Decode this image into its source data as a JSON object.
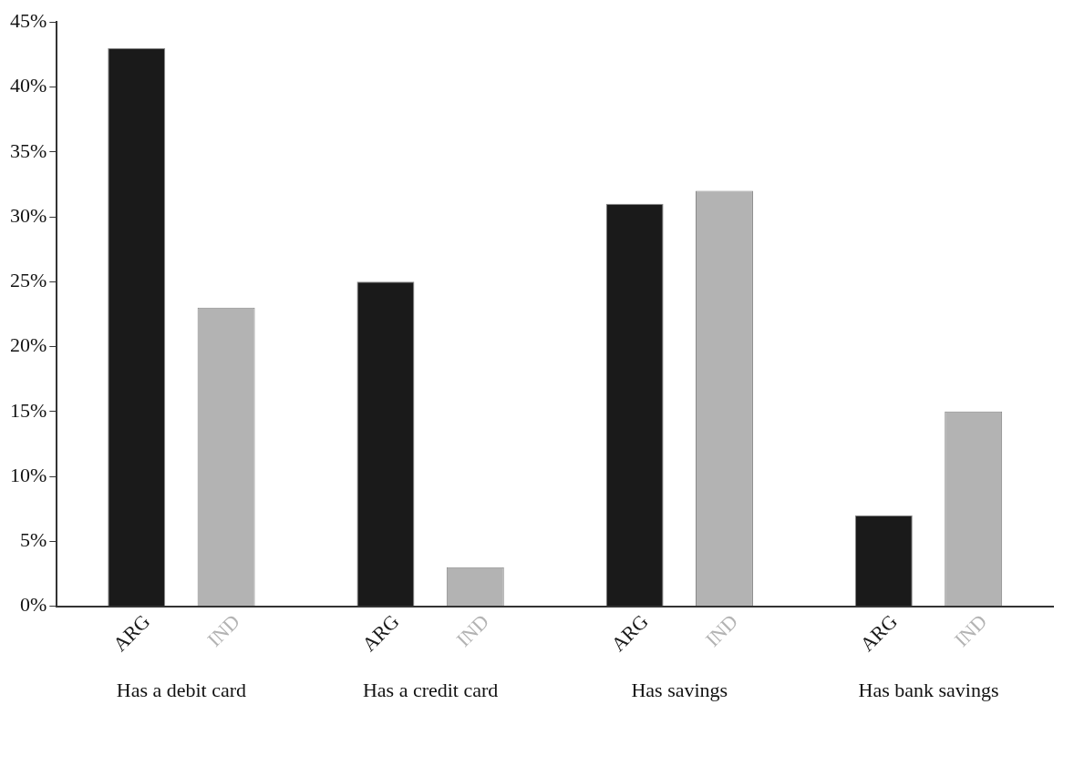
{
  "chart_data": {
    "type": "bar",
    "categories": [
      "Has a debit card",
      "Has a credit card",
      "Has savings",
      "Has bank savings"
    ],
    "series": [
      {
        "name": "ARG",
        "color": "#1a1a1a",
        "values": [
          43,
          25,
          31,
          7
        ]
      },
      {
        "name": "IND",
        "color": "#b3b3b3",
        "values": [
          23,
          3,
          32,
          15
        ]
      }
    ],
    "ylim": [
      0,
      45
    ],
    "yticks": [
      {
        "value": 0,
        "label": "0%"
      },
      {
        "value": 5,
        "label": "5%"
      },
      {
        "value": 10,
        "label": "10%"
      },
      {
        "value": 15,
        "label": "15%"
      },
      {
        "value": 20,
        "label": "20%"
      },
      {
        "value": 25,
        "label": "25%"
      },
      {
        "value": 30,
        "label": "30%"
      },
      {
        "value": 35,
        "label": "35%"
      },
      {
        "value": 40,
        "label": "40%"
      },
      {
        "value": 45,
        "label": "45%"
      }
    ],
    "grid": false,
    "legend": false
  }
}
